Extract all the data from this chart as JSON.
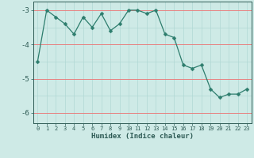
{
  "x": [
    0,
    1,
    2,
    3,
    4,
    5,
    6,
    7,
    8,
    9,
    10,
    11,
    12,
    13,
    14,
    15,
    16,
    17,
    18,
    19,
    20,
    21,
    22,
    23
  ],
  "y": [
    -4.5,
    -3.0,
    -3.2,
    -3.4,
    -3.7,
    -3.2,
    -3.5,
    -3.1,
    -3.6,
    -3.4,
    -3.0,
    -3.0,
    -3.1,
    -3.0,
    -3.7,
    -3.8,
    -4.6,
    -4.7,
    -4.6,
    -5.3,
    -5.55,
    -5.45,
    -5.45,
    -5.3
  ],
  "xlabel": "Humidex (Indice chaleur)",
  "xlim": [
    -0.5,
    23.5
  ],
  "ylim": [
    -6.3,
    -2.75
  ],
  "yticks": [
    -3,
    -4,
    -5,
    -6
  ],
  "xticks": [
    0,
    1,
    2,
    3,
    4,
    5,
    6,
    7,
    8,
    9,
    10,
    11,
    12,
    13,
    14,
    15,
    16,
    17,
    18,
    19,
    20,
    21,
    22,
    23
  ],
  "line_color": "#2d7d6d",
  "bg_color": "#ceeae6",
  "grid_red": "#e88080",
  "grid_teal": "#b0d8d4",
  "marker_size": 2.5
}
